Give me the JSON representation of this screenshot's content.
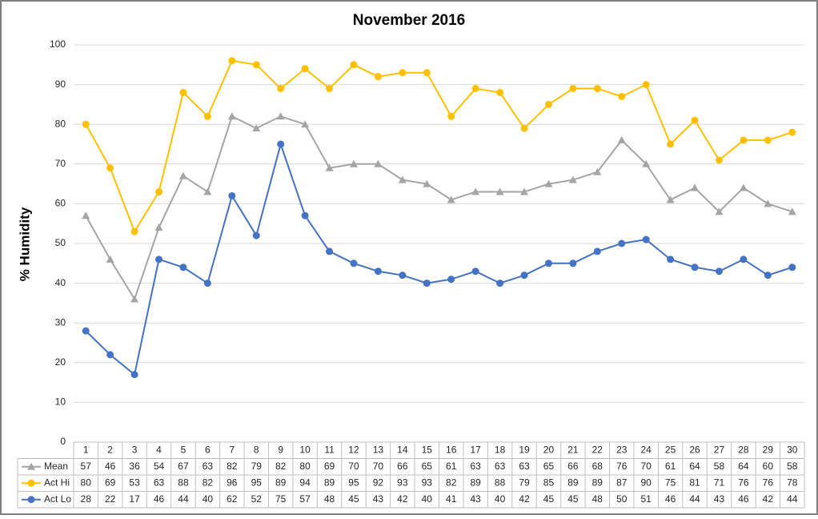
{
  "chart_data": {
    "type": "line",
    "title": "November 2016",
    "y_label": "% Humidity",
    "categories": [
      "1",
      "2",
      "3",
      "4",
      "5",
      "6",
      "7",
      "8",
      "9",
      "10",
      "11",
      "12",
      "13",
      "14",
      "15",
      "16",
      "17",
      "18",
      "19",
      "20",
      "21",
      "22",
      "23",
      "24",
      "25",
      "26",
      "27",
      "28",
      "29",
      "30"
    ],
    "series": [
      {
        "name": "Mean",
        "color": "#a5a5a5",
        "marker": "triangle",
        "values": [
          57,
          46,
          36,
          54,
          67,
          63,
          82,
          79,
          82,
          80,
          69,
          70,
          70,
          66,
          65,
          61,
          63,
          63,
          63,
          65,
          66,
          68,
          76,
          70,
          61,
          64,
          58,
          64,
          60,
          58
        ]
      },
      {
        "name": "Act Hi",
        "color": "#ffc000",
        "marker": "circle",
        "values": [
          80,
          69,
          53,
          63,
          88,
          82,
          96,
          95,
          89,
          94,
          89,
          95,
          92,
          93,
          93,
          82,
          89,
          88,
          79,
          85,
          89,
          89,
          87,
          90,
          75,
          81,
          71,
          76,
          76,
          78
        ]
      },
      {
        "name": "Act Lo",
        "color": "#4472c4",
        "marker": "circle",
        "values": [
          28,
          22,
          17,
          46,
          44,
          40,
          62,
          52,
          75,
          57,
          48,
          45,
          43,
          42,
          40,
          41,
          43,
          40,
          42,
          45,
          45,
          48,
          50,
          51,
          46,
          44,
          43,
          46,
          42,
          44
        ]
      }
    ],
    "ylim": [
      0,
      100
    ],
    "yticks": [
      0,
      10,
      20,
      30,
      40,
      50,
      60,
      70,
      80,
      90,
      100
    ],
    "grid": true,
    "data_table": true
  }
}
